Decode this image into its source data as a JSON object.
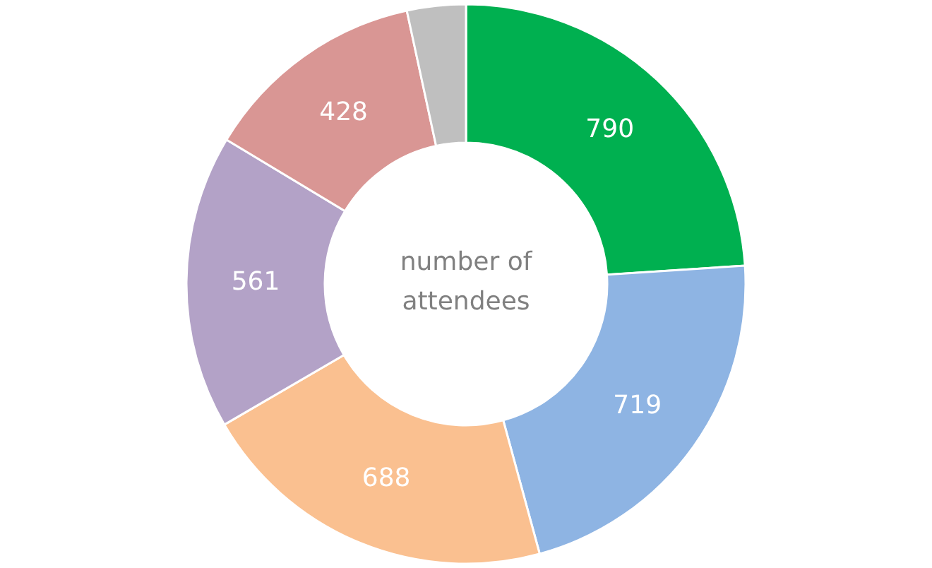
{
  "chart_data": {
    "type": "donut",
    "categories": [
      null,
      null,
      null,
      null,
      null,
      null
    ],
    "values": [
      790,
      719,
      688,
      561,
      428,
      112
    ],
    "value_labels": [
      "790",
      "719",
      "688",
      "561",
      "428",
      null
    ],
    "colors": [
      "#00b050",
      "#8eb4e3",
      "#fac090",
      "#b3a2c7",
      "#d99694",
      "#bfbfbf"
    ],
    "annotations": [
      "number of attendees"
    ]
  }
}
